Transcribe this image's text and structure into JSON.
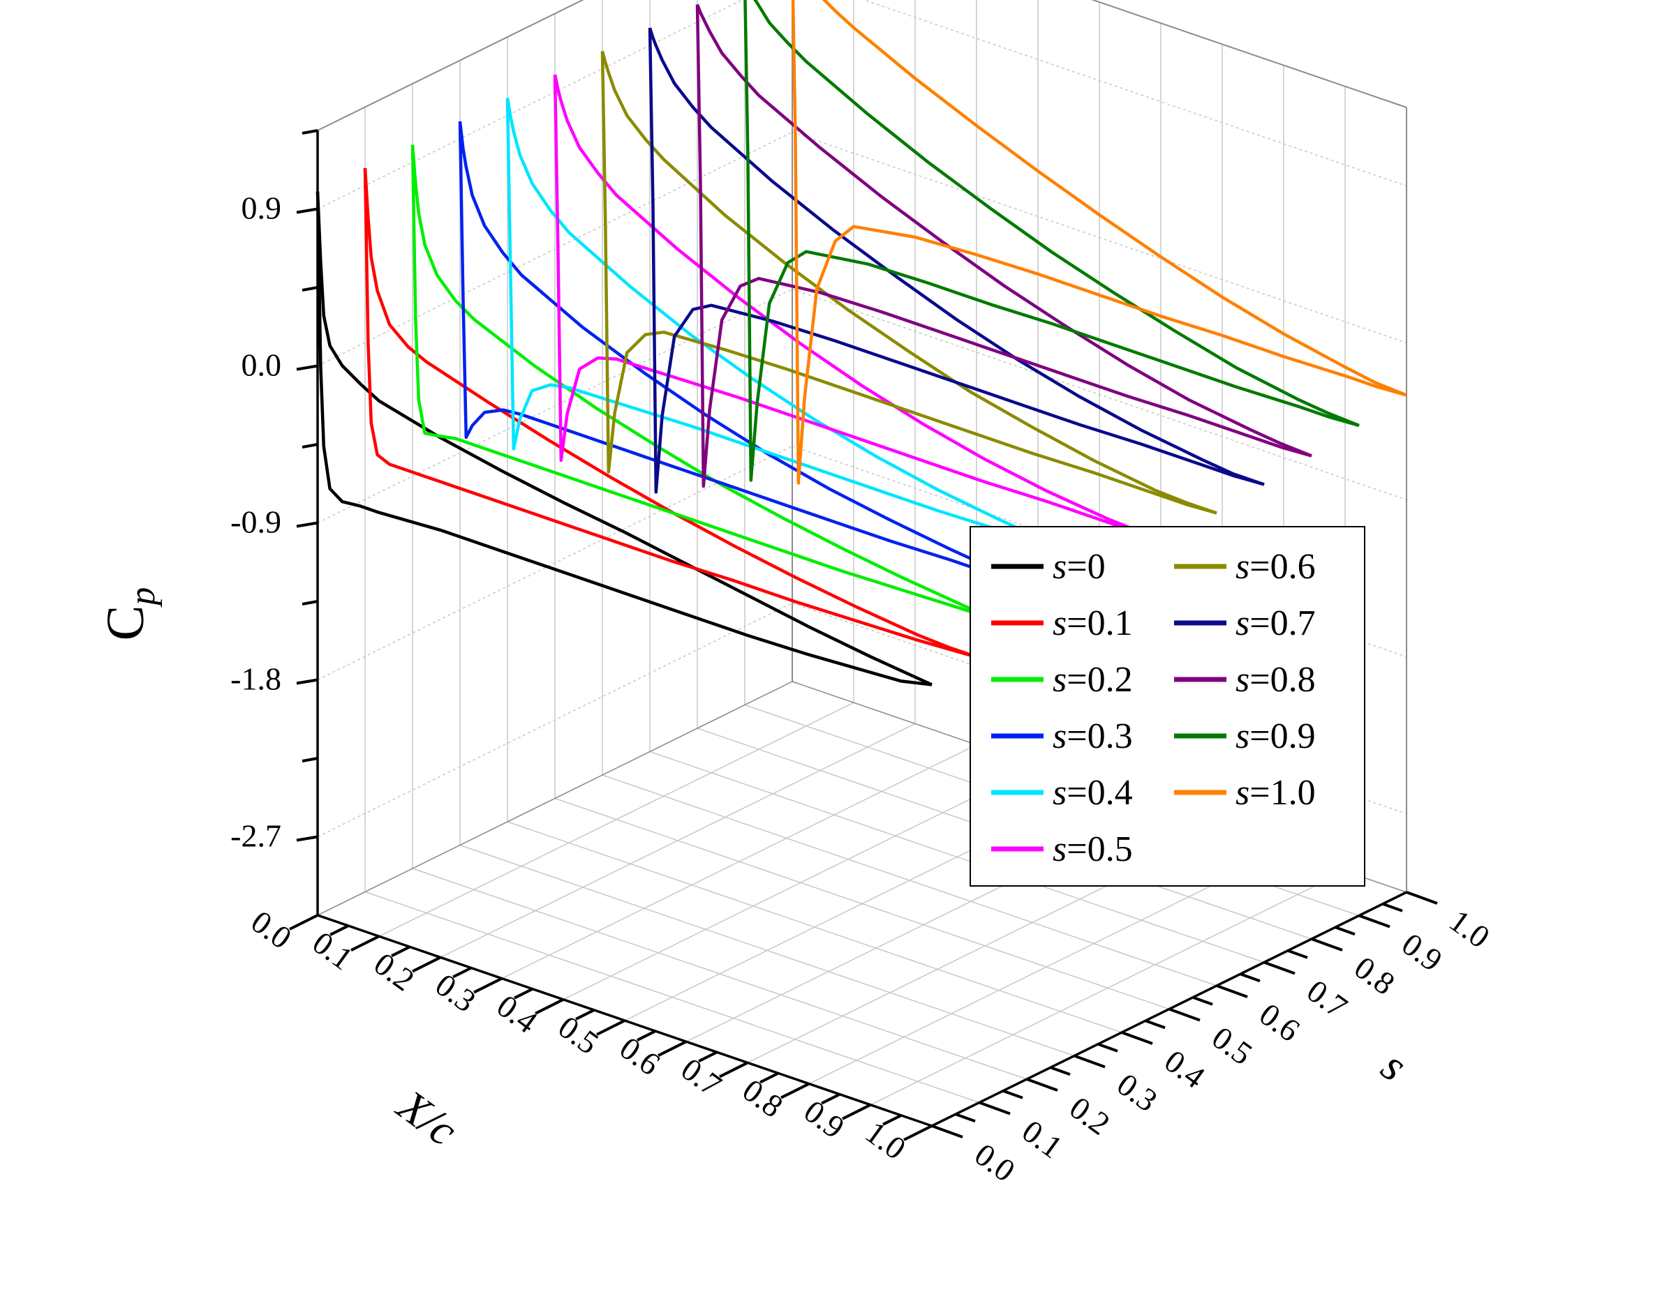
{
  "chart_data": {
    "type": "line",
    "projection": "3d-waterfall",
    "title": "",
    "axes": {
      "x": {
        "label": "X/c",
        "range": [
          0.0,
          1.0
        ],
        "ticks": [
          "0.0",
          "0.1",
          "0.2",
          "0.3",
          "0.4",
          "0.5",
          "0.6",
          "0.7",
          "0.8",
          "0.9",
          "1.0"
        ]
      },
      "s": {
        "label": "s",
        "range": [
          0.0,
          1.0
        ],
        "ticks": [
          "0.0",
          "0.1",
          "0.2",
          "0.3",
          "0.4",
          "0.5",
          "0.6",
          "0.7",
          "0.8",
          "0.9",
          "1.0"
        ]
      },
      "z": {
        "label_main": "C",
        "label_sub": "p",
        "range": [
          -3.15,
          1.35
        ],
        "ticks": [
          "0.9",
          "0.0",
          "-0.9",
          "-1.8",
          "-2.7"
        ],
        "tick_values": [
          0.9,
          0.0,
          -0.9,
          -1.8,
          -2.7
        ]
      }
    },
    "grid": true,
    "legend": {
      "placement": "right",
      "columns": 2
    },
    "series": [
      {
        "name": "=0",
        "s": 0.0,
        "color": "#000000",
        "upper": {
          "x": [
            0,
            0.005,
            0.01,
            0.02,
            0.04,
            0.07,
            0.1,
            0.2,
            0.3,
            0.4,
            0.5,
            0.6,
            0.7,
            0.8,
            0.9,
            0.95,
            1.0
          ],
          "cp": [
            1.0,
            0.6,
            0.3,
            0.14,
            0.05,
            -0.02,
            -0.08,
            -0.17,
            -0.24,
            -0.3,
            -0.35,
            -0.41,
            -0.47,
            -0.53,
            -0.58,
            -0.6,
            -0.62
          ]
        },
        "lower": {
          "x": [
            0,
            0.005,
            0.01,
            0.02,
            0.04,
            0.07,
            0.1,
            0.2,
            0.3,
            0.4,
            0.5,
            0.6,
            0.7,
            0.8,
            0.9,
            0.95,
            1.0
          ],
          "cp": [
            1.0,
            0.0,
            -0.45,
            -0.68,
            -0.73,
            -0.72,
            -0.72,
            -0.7,
            -0.7,
            -0.7,
            -0.7,
            -0.7,
            -0.7,
            -0.69,
            -0.67,
            -0.66,
            -0.62
          ]
        }
      },
      {
        "name": "=0.1",
        "s": 0.1,
        "color": "#ff0000",
        "upper": {
          "x": [
            0,
            0.005,
            0.01,
            0.02,
            0.04,
            0.07,
            0.1,
            0.2,
            0.3,
            0.4,
            0.5,
            0.6,
            0.7,
            0.8,
            0.9,
            0.95,
            1.0
          ],
          "cp": [
            1.0,
            0.72,
            0.5,
            0.32,
            0.15,
            0.06,
            0.01,
            -0.1,
            -0.2,
            -0.29,
            -0.37,
            -0.44,
            -0.5,
            -0.55,
            -0.59,
            -0.6,
            -0.6
          ]
        },
        "lower": {
          "x": [
            0,
            0.005,
            0.01,
            0.02,
            0.04,
            0.07,
            0.1,
            0.2,
            0.3,
            0.4,
            0.5,
            0.6,
            0.7,
            0.8,
            0.9,
            0.95,
            1.0
          ],
          "cp": [
            1.0,
            0.0,
            -0.45,
            -0.62,
            -0.65,
            -0.65,
            -0.65,
            -0.65,
            -0.65,
            -0.65,
            -0.65,
            -0.64,
            -0.64,
            -0.63,
            -0.62,
            -0.61,
            -0.6
          ]
        }
      },
      {
        "name": "=0.2",
        "s": 0.2,
        "color": "#00ee00",
        "upper": {
          "x": [
            0,
            0.005,
            0.01,
            0.02,
            0.04,
            0.07,
            0.1,
            0.2,
            0.3,
            0.4,
            0.5,
            0.6,
            0.7,
            0.8,
            0.9,
            0.95,
            1.0
          ],
          "cp": [
            1.0,
            0.78,
            0.62,
            0.45,
            0.3,
            0.19,
            0.12,
            -0.03,
            -0.15,
            -0.25,
            -0.34,
            -0.41,
            -0.47,
            -0.52,
            -0.56,
            -0.57,
            -0.57
          ]
        },
        "lower": {
          "x": [
            0,
            0.005,
            0.01,
            0.02,
            0.04,
            0.07,
            0.1,
            0.2,
            0.3,
            0.4,
            0.5,
            0.6,
            0.7,
            0.8,
            0.9,
            0.95,
            1.0
          ],
          "cp": [
            1.0,
            0.0,
            -0.45,
            -0.63,
            -0.62,
            -0.6,
            -0.6,
            -0.6,
            -0.6,
            -0.6,
            -0.6,
            -0.6,
            -0.6,
            -0.59,
            -0.58,
            -0.58,
            -0.57
          ]
        }
      },
      {
        "name": "=0.3",
        "s": 0.3,
        "color": "#0022ee",
        "upper": {
          "x": [
            0,
            0.005,
            0.01,
            0.02,
            0.04,
            0.07,
            0.1,
            0.2,
            0.3,
            0.4,
            0.5,
            0.6,
            0.7,
            0.8,
            0.9,
            0.95,
            1.0
          ],
          "cp": [
            1.0,
            0.85,
            0.75,
            0.6,
            0.45,
            0.33,
            0.24,
            0.06,
            -0.08,
            -0.2,
            -0.3,
            -0.38,
            -0.44,
            -0.49,
            -0.53,
            -0.54,
            -0.54
          ]
        },
        "lower": {
          "x": [
            0,
            0.005,
            0.01,
            0.02,
            0.04,
            0.07,
            0.1,
            0.2,
            0.3,
            0.4,
            0.5,
            0.6,
            0.7,
            0.8,
            0.9,
            0.95,
            1.0
          ],
          "cp": [
            1.0,
            0.0,
            -0.8,
            -0.72,
            -0.62,
            -0.57,
            -0.56,
            -0.56,
            -0.56,
            -0.56,
            -0.56,
            -0.56,
            -0.56,
            -0.55,
            -0.55,
            -0.55,
            -0.54
          ]
        }
      },
      {
        "name": "=0.4",
        "s": 0.4,
        "color": "#00e5ff",
        "upper": {
          "x": [
            0,
            0.005,
            0.01,
            0.02,
            0.04,
            0.07,
            0.1,
            0.2,
            0.3,
            0.4,
            0.5,
            0.6,
            0.7,
            0.8,
            0.9,
            0.95,
            1.0
          ],
          "cp": [
            1.0,
            0.9,
            0.82,
            0.7,
            0.56,
            0.44,
            0.35,
            0.16,
            0.0,
            -0.13,
            -0.24,
            -0.33,
            -0.4,
            -0.45,
            -0.49,
            -0.5,
            -0.5
          ]
        },
        "lower": {
          "x": [
            0,
            0.005,
            0.01,
            0.02,
            0.04,
            0.07,
            0.1,
            0.2,
            0.3,
            0.4,
            0.5,
            0.6,
            0.7,
            0.8,
            0.9,
            0.95,
            1.0
          ],
          "cp": [
            1.0,
            0.0,
            -1.0,
            -0.82,
            -0.63,
            -0.56,
            -0.54,
            -0.53,
            -0.52,
            -0.52,
            -0.52,
            -0.52,
            -0.52,
            -0.51,
            -0.51,
            -0.51,
            -0.5
          ]
        }
      },
      {
        "name": "=0.5",
        "s": 0.5,
        "color": "#ff00ff",
        "upper": {
          "x": [
            0,
            0.005,
            0.01,
            0.02,
            0.04,
            0.07,
            0.1,
            0.2,
            0.3,
            0.4,
            0.5,
            0.6,
            0.7,
            0.8,
            0.9,
            0.95,
            1.0
          ],
          "cp": [
            1.0,
            0.92,
            0.86,
            0.76,
            0.63,
            0.52,
            0.43,
            0.24,
            0.08,
            -0.06,
            -0.18,
            -0.28,
            -0.36,
            -0.42,
            -0.46,
            -0.47,
            -0.47
          ]
        },
        "lower": {
          "x": [
            0,
            0.005,
            0.01,
            0.02,
            0.04,
            0.07,
            0.1,
            0.2,
            0.3,
            0.4,
            0.5,
            0.6,
            0.7,
            0.8,
            0.9,
            0.95,
            1.0
          ],
          "cp": [
            1.0,
            0.0,
            -1.2,
            -0.92,
            -0.64,
            -0.54,
            -0.51,
            -0.5,
            -0.49,
            -0.49,
            -0.49,
            -0.49,
            -0.49,
            -0.48,
            -0.48,
            -0.48,
            -0.47
          ]
        }
      },
      {
        "name": "=0.6",
        "s": 0.6,
        "color": "#8b8b00",
        "upper": {
          "x": [
            0,
            0.005,
            0.01,
            0.02,
            0.04,
            0.07,
            0.1,
            0.2,
            0.3,
            0.4,
            0.5,
            0.6,
            0.7,
            0.8,
            0.9,
            0.95,
            1.0
          ],
          "cp": [
            1.0,
            0.94,
            0.89,
            0.8,
            0.68,
            0.58,
            0.5,
            0.3,
            0.14,
            0.0,
            -0.12,
            -0.23,
            -0.31,
            -0.38,
            -0.43,
            -0.44,
            -0.44
          ]
        },
        "lower": {
          "x": [
            0,
            0.005,
            0.01,
            0.02,
            0.04,
            0.07,
            0.1,
            0.2,
            0.3,
            0.4,
            0.5,
            0.6,
            0.7,
            0.8,
            0.9,
            0.95,
            1.0
          ],
          "cp": [
            1.0,
            0.0,
            -1.4,
            -1.05,
            -0.68,
            -0.54,
            -0.49,
            -0.47,
            -0.46,
            -0.46,
            -0.46,
            -0.46,
            -0.46,
            -0.45,
            -0.45,
            -0.45,
            -0.44
          ]
        }
      },
      {
        "name": "=0.7",
        "s": 0.7,
        "color": "#0a0a8c",
        "upper": {
          "x": [
            0,
            0.005,
            0.01,
            0.02,
            0.04,
            0.07,
            0.1,
            0.2,
            0.3,
            0.4,
            0.5,
            0.6,
            0.7,
            0.8,
            0.9,
            0.95,
            1.0
          ],
          "cp": [
            1.0,
            0.95,
            0.91,
            0.84,
            0.73,
            0.63,
            0.55,
            0.36,
            0.2,
            0.06,
            -0.07,
            -0.18,
            -0.27,
            -0.34,
            -0.39,
            -0.41,
            -0.41
          ]
        },
        "lower": {
          "x": [
            0,
            0.005,
            0.01,
            0.02,
            0.04,
            0.07,
            0.1,
            0.2,
            0.3,
            0.4,
            0.5,
            0.6,
            0.7,
            0.8,
            0.9,
            0.95,
            1.0
          ],
          "cp": [
            1.0,
            0.0,
            -1.65,
            -1.2,
            -0.72,
            -0.53,
            -0.47,
            -0.44,
            -0.43,
            -0.43,
            -0.43,
            -0.43,
            -0.43,
            -0.42,
            -0.42,
            -0.42,
            -0.41
          ]
        }
      },
      {
        "name": "=0.8",
        "s": 0.8,
        "color": "#800080",
        "upper": {
          "x": [
            0,
            0.005,
            0.01,
            0.02,
            0.04,
            0.07,
            0.1,
            0.2,
            0.3,
            0.4,
            0.5,
            0.6,
            0.7,
            0.8,
            0.9,
            0.95,
            1.0
          ],
          "cp": [
            1.0,
            0.96,
            0.93,
            0.87,
            0.77,
            0.68,
            0.6,
            0.42,
            0.26,
            0.12,
            -0.01,
            -0.12,
            -0.22,
            -0.3,
            -0.35,
            -0.37,
            -0.38
          ]
        },
        "lower": {
          "x": [
            0,
            0.005,
            0.01,
            0.02,
            0.04,
            0.07,
            0.1,
            0.2,
            0.3,
            0.4,
            0.5,
            0.6,
            0.7,
            0.8,
            0.9,
            0.95,
            1.0
          ],
          "cp": [
            1.0,
            0.0,
            -1.75,
            -1.3,
            -0.76,
            -0.53,
            -0.45,
            -0.41,
            -0.4,
            -0.4,
            -0.4,
            -0.4,
            -0.4,
            -0.39,
            -0.39,
            -0.39,
            -0.38
          ]
        }
      },
      {
        "name": "=0.9",
        "s": 0.9,
        "color": "#007a00",
        "upper": {
          "x": [
            0,
            0.005,
            0.01,
            0.02,
            0.04,
            0.07,
            0.1,
            0.2,
            0.3,
            0.4,
            0.5,
            0.6,
            0.7,
            0.8,
            0.9,
            0.95,
            1.0
          ],
          "cp": [
            1.0,
            0.97,
            0.94,
            0.9,
            0.81,
            0.73,
            0.66,
            0.48,
            0.32,
            0.18,
            0.05,
            -0.06,
            -0.16,
            -0.25,
            -0.31,
            -0.33,
            -0.34
          ]
        },
        "lower": {
          "x": [
            0,
            0.005,
            0.01,
            0.02,
            0.04,
            0.07,
            0.1,
            0.2,
            0.3,
            0.4,
            0.5,
            0.6,
            0.7,
            0.8,
            0.9,
            0.95,
            1.0
          ],
          "cp": [
            1.0,
            0.0,
            -1.85,
            -1.4,
            -0.8,
            -0.53,
            -0.43,
            -0.38,
            -0.37,
            -0.37,
            -0.36,
            -0.36,
            -0.36,
            -0.36,
            -0.35,
            -0.35,
            -0.34
          ]
        }
      },
      {
        "name": "=1.0",
        "s": 1.0,
        "color": "#ff8000",
        "upper": {
          "x": [
            0,
            0.005,
            0.01,
            0.02,
            0.04,
            0.07,
            0.1,
            0.2,
            0.3,
            0.4,
            0.5,
            0.6,
            0.7,
            0.8,
            0.9,
            0.95,
            1.0
          ],
          "cp": [
            1.0,
            0.97,
            0.95,
            0.92,
            0.85,
            0.78,
            0.72,
            0.55,
            0.4,
            0.26,
            0.13,
            0.01,
            -0.1,
            -0.19,
            -0.26,
            -0.29,
            -0.3
          ]
        },
        "lower": {
          "x": [
            0,
            0.005,
            0.01,
            0.02,
            0.04,
            0.07,
            0.1,
            0.2,
            0.3,
            0.4,
            0.5,
            0.6,
            0.7,
            0.8,
            0.9,
            0.95,
            1.0
          ],
          "cp": [
            1.0,
            0.0,
            -2.0,
            -1.5,
            -0.85,
            -0.54,
            -0.42,
            -0.36,
            -0.34,
            -0.33,
            -0.33,
            -0.33,
            -0.32,
            -0.32,
            -0.31,
            -0.31,
            -0.3
          ]
        }
      }
    ]
  }
}
